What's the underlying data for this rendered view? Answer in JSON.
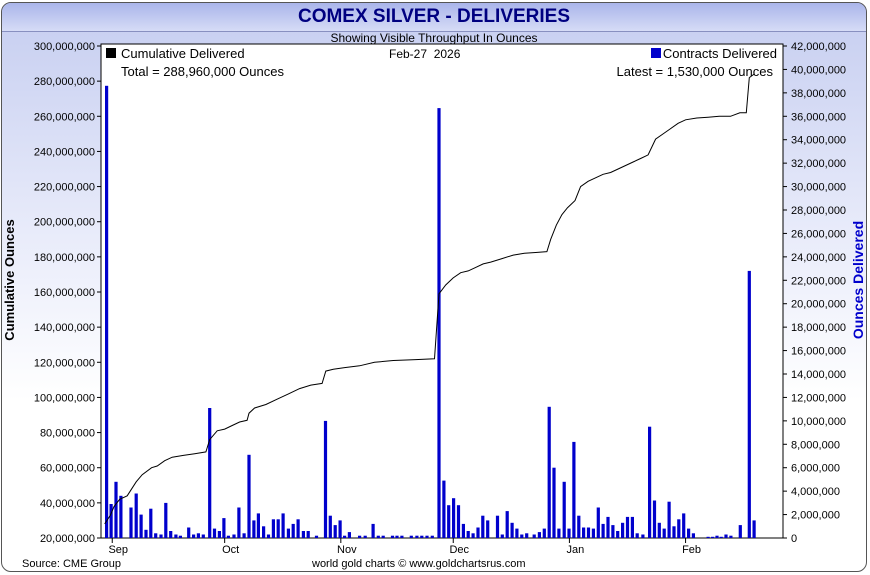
{
  "header": {
    "title": "COMEX SILVER - DELIVERIES",
    "subtitle": "Showing Visible Throughput In Ounces"
  },
  "footer": {
    "source": "Source: CME Group",
    "credit": "world gold charts © www.goldchartsrus.com"
  },
  "colors": {
    "bars": "#0000cc",
    "line": "#000000",
    "right_axis_label": "#0000cc"
  },
  "chart_data": {
    "type": "bar+line",
    "date": "Feb-27  2026",
    "legend_left": {
      "label": "Cumulative Delivered",
      "total": "Total = 288,960,000 Ounces",
      "swatch": "#000000"
    },
    "legend_right": {
      "label": "Contracts Delivered",
      "latest": "Latest = 1,530,000 Ounces",
      "swatch": "#0000cc"
    },
    "ylabel_left": "Cumulative Ounces",
    "ylabel_right": "Ounces Delivered",
    "y_left": {
      "min": 20000000,
      "max": 300000000,
      "ticks": [
        {
          "v": 20000000,
          "label": "20,000,000"
        },
        {
          "v": 40000000,
          "label": "40,000,000"
        },
        {
          "v": 60000000,
          "label": "60,000,000"
        },
        {
          "v": 80000000,
          "label": "80,000,000"
        },
        {
          "v": 100000000,
          "label": "100,000,000"
        },
        {
          "v": 120000000,
          "label": "120,000,000"
        },
        {
          "v": 140000000,
          "label": "140,000,000"
        },
        {
          "v": 160000000,
          "label": "160,000,000"
        },
        {
          "v": 180000000,
          "label": "180,000,000"
        },
        {
          "v": 200000000,
          "label": "200,000,000"
        },
        {
          "v": 220000000,
          "label": "220,000,000"
        },
        {
          "v": 240000000,
          "label": "240,000,000"
        },
        {
          "v": 260000000,
          "label": "260,000,000"
        },
        {
          "v": 280000000,
          "label": "280,000,000"
        },
        {
          "v": 300000000,
          "label": "300,000,000"
        }
      ]
    },
    "y_right": {
      "min": 0,
      "max": 42000000,
      "ticks": [
        {
          "v": 0,
          "label": "0"
        },
        {
          "v": 2000000,
          "label": "2,000,000"
        },
        {
          "v": 4000000,
          "label": "4,000,000"
        },
        {
          "v": 6000000,
          "label": "6,000,000"
        },
        {
          "v": 8000000,
          "label": "8,000,000"
        },
        {
          "v": 10000000,
          "label": "10,000,000"
        },
        {
          "v": 12000000,
          "label": "12,000,000"
        },
        {
          "v": 14000000,
          "label": "14,000,000"
        },
        {
          "v": 16000000,
          "label": "16,000,000"
        },
        {
          "v": 18000000,
          "label": "18,000,000"
        },
        {
          "v": 20000000,
          "label": "20,000,000"
        },
        {
          "v": 22000000,
          "label": "22,000,000"
        },
        {
          "v": 24000000,
          "label": "24,000,000"
        },
        {
          "v": 26000000,
          "label": "26,000,000"
        },
        {
          "v": 28000000,
          "label": "28,000,000"
        },
        {
          "v": 30000000,
          "label": "30,000,000"
        },
        {
          "v": 32000000,
          "label": "32,000,000"
        },
        {
          "v": 34000000,
          "label": "34,000,000"
        },
        {
          "v": 36000000,
          "label": "36,000,000"
        },
        {
          "v": 38000000,
          "label": "38,000,000"
        },
        {
          "v": 40000000,
          "label": "40,000,000"
        },
        {
          "v": 42000000,
          "label": "42,000,000"
        }
      ]
    },
    "x_months": [
      {
        "label": "Sep",
        "day": 1
      },
      {
        "label": "Oct",
        "day": 31
      },
      {
        "label": "Nov",
        "day": 62
      },
      {
        "label": "Dec",
        "day": 92
      },
      {
        "label": "Jan",
        "day": 123
      },
      {
        "label": "Feb",
        "day": 154
      }
    ],
    "x_range": [
      -2,
      180
    ],
    "deliveries": [
      [
        -0.5,
        38600000
      ],
      [
        0.7,
        2900000
      ],
      [
        2,
        4800000
      ],
      [
        3.3,
        3600000
      ],
      [
        6,
        2600000
      ],
      [
        7.4,
        3800000
      ],
      [
        8.7,
        2000000
      ],
      [
        10,
        700000
      ],
      [
        11.3,
        2500000
      ],
      [
        12.6,
        400000
      ],
      [
        14,
        300000
      ],
      [
        15.3,
        3000000
      ],
      [
        16.6,
        600000
      ],
      [
        18,
        300000
      ],
      [
        19.2,
        200000
      ],
      [
        21.4,
        900000
      ],
      [
        22.7,
        300000
      ],
      [
        24,
        400000
      ],
      [
        25.3,
        300000
      ],
      [
        27,
        11100000
      ],
      [
        28.3,
        800000
      ],
      [
        29.6,
        600000
      ],
      [
        30.8,
        1700000
      ],
      [
        32,
        200000
      ],
      [
        33.5,
        300000
      ],
      [
        34.8,
        2600000
      ],
      [
        36.2,
        400000
      ],
      [
        37.5,
        7100000
      ],
      [
        38.8,
        1500000
      ],
      [
        40,
        2100000
      ],
      [
        41.4,
        1000000
      ],
      [
        42.7,
        300000
      ],
      [
        44,
        1600000
      ],
      [
        45.3,
        1600000
      ],
      [
        46.6,
        2100000
      ],
      [
        48,
        800000
      ],
      [
        49.3,
        1200000
      ],
      [
        50.6,
        1600000
      ],
      [
        52,
        600000
      ],
      [
        53.3,
        600000
      ],
      [
        55.5,
        200000
      ],
      [
        57.9,
        10000000
      ],
      [
        59.2,
        1900000
      ],
      [
        60.5,
        1100000
      ],
      [
        61.8,
        1500000
      ],
      [
        63,
        200000
      ],
      [
        64.3,
        500000
      ],
      [
        67,
        200000
      ],
      [
        68.5,
        200000
      ],
      [
        70.6,
        1200000
      ],
      [
        72,
        200000
      ],
      [
        73.3,
        200000
      ],
      [
        75.8,
        200000
      ],
      [
        77,
        200000
      ],
      [
        78.3,
        200000
      ],
      [
        80.8,
        200000
      ],
      [
        82.3,
        200000
      ],
      [
        83.6,
        200000
      ],
      [
        85,
        200000
      ],
      [
        86.4,
        200000
      ],
      [
        88.2,
        36700000
      ],
      [
        89.5,
        4900000
      ],
      [
        90.8,
        2800000
      ],
      [
        92.1,
        3400000
      ],
      [
        93.4,
        2800000
      ],
      [
        94.7,
        1200000
      ],
      [
        96,
        600000
      ],
      [
        97.3,
        400000
      ],
      [
        98.6,
        900000
      ],
      [
        99.9,
        1900000
      ],
      [
        101.2,
        1500000
      ],
      [
        103.8,
        1900000
      ],
      [
        105.1,
        300000
      ],
      [
        106.4,
        2300000
      ],
      [
        107.7,
        1300000
      ],
      [
        109,
        800000
      ],
      [
        110.3,
        300000
      ],
      [
        111.6,
        400000
      ],
      [
        113.6,
        300000
      ],
      [
        115,
        500000
      ],
      [
        116.3,
        800000
      ],
      [
        117.6,
        11200000
      ],
      [
        118.9,
        6000000
      ],
      [
        120.2,
        800000
      ],
      [
        121.6,
        4800000
      ],
      [
        122.9,
        800000
      ],
      [
        124.2,
        8200000
      ],
      [
        125.5,
        1900000
      ],
      [
        126.8,
        900000
      ],
      [
        128.1,
        900000
      ],
      [
        129.4,
        800000
      ],
      [
        130.7,
        2600000
      ],
      [
        132,
        1200000
      ],
      [
        133.3,
        1800000
      ],
      [
        134.6,
        1100000
      ],
      [
        135.9,
        600000
      ],
      [
        137.2,
        1300000
      ],
      [
        138.5,
        1800000
      ],
      [
        139.8,
        1800000
      ],
      [
        141.1,
        400000
      ],
      [
        142.6,
        300000
      ],
      [
        144.4,
        9500000
      ],
      [
        145.7,
        3200000
      ],
      [
        147,
        1300000
      ],
      [
        148.3,
        800000
      ],
      [
        149.6,
        3100000
      ],
      [
        150.9,
        1000000
      ],
      [
        152.2,
        1600000
      ],
      [
        153.5,
        2100000
      ],
      [
        154.8,
        800000
      ],
      [
        156.1,
        400000
      ],
      [
        160,
        100000
      ],
      [
        161.2,
        100000
      ],
      [
        162.4,
        200000
      ],
      [
        163.5,
        100000
      ],
      [
        164.8,
        300000
      ],
      [
        166.1,
        200000
      ],
      [
        168.6,
        1100000
      ],
      [
        171,
        22800000
      ],
      [
        172.3,
        1500000
      ]
    ],
    "cumulative": [
      [
        -1,
        28000000
      ],
      [
        0.5,
        33000000
      ],
      [
        1.5,
        38000000
      ],
      [
        3,
        42000000
      ],
      [
        5,
        44000000
      ],
      [
        7.4,
        52000000
      ],
      [
        9,
        56000000
      ],
      [
        11.5,
        60000000
      ],
      [
        13,
        61000000
      ],
      [
        15,
        64000000
      ],
      [
        17,
        66000000
      ],
      [
        20,
        67000000
      ],
      [
        23,
        68000000
      ],
      [
        26,
        69000000
      ],
      [
        27,
        76000000
      ],
      [
        29,
        81000000
      ],
      [
        31,
        82000000
      ],
      [
        33,
        84000000
      ],
      [
        35,
        86000000
      ],
      [
        37,
        87000000
      ],
      [
        37.5,
        91000000
      ],
      [
        39,
        94000000
      ],
      [
        42,
        96000000
      ],
      [
        45,
        99000000
      ],
      [
        48,
        102000000
      ],
      [
        51,
        105000000
      ],
      [
        54,
        107000000
      ],
      [
        57,
        108000000
      ],
      [
        58,
        115000000
      ],
      [
        60,
        116000000
      ],
      [
        63,
        117000000
      ],
      [
        67,
        118000000
      ],
      [
        71,
        120000000
      ],
      [
        76,
        121000000
      ],
      [
        82,
        121500000
      ],
      [
        87,
        122000000
      ],
      [
        88.2,
        159000000
      ],
      [
        90,
        164000000
      ],
      [
        92,
        168000000
      ],
      [
        94,
        171000000
      ],
      [
        96,
        172000000
      ],
      [
        98,
        174000000
      ],
      [
        100,
        176000000
      ],
      [
        102,
        177000000
      ],
      [
        105,
        179000000
      ],
      [
        108,
        181000000
      ],
      [
        111,
        182000000
      ],
      [
        114,
        182500000
      ],
      [
        117,
        183000000
      ],
      [
        118,
        190000000
      ],
      [
        119.5,
        198000000
      ],
      [
        121,
        204000000
      ],
      [
        122.5,
        208000000
      ],
      [
        124.5,
        212000000
      ],
      [
        126,
        220000000
      ],
      [
        128,
        223000000
      ],
      [
        130,
        225000000
      ],
      [
        132,
        227000000
      ],
      [
        134,
        228000000
      ],
      [
        136,
        230000000
      ],
      [
        138,
        232000000
      ],
      [
        140,
        234000000
      ],
      [
        142,
        236000000
      ],
      [
        144,
        238000000
      ],
      [
        146,
        247000000
      ],
      [
        148,
        250000000
      ],
      [
        150,
        253000000
      ],
      [
        152,
        256000000
      ],
      [
        154,
        258000000
      ],
      [
        157,
        259000000
      ],
      [
        160,
        259500000
      ],
      [
        163,
        260000000
      ],
      [
        166,
        260000000
      ],
      [
        168.5,
        262000000
      ],
      [
        170.2,
        262000000
      ],
      [
        171,
        282000000
      ],
      [
        172.3,
        284000000
      ]
    ]
  }
}
